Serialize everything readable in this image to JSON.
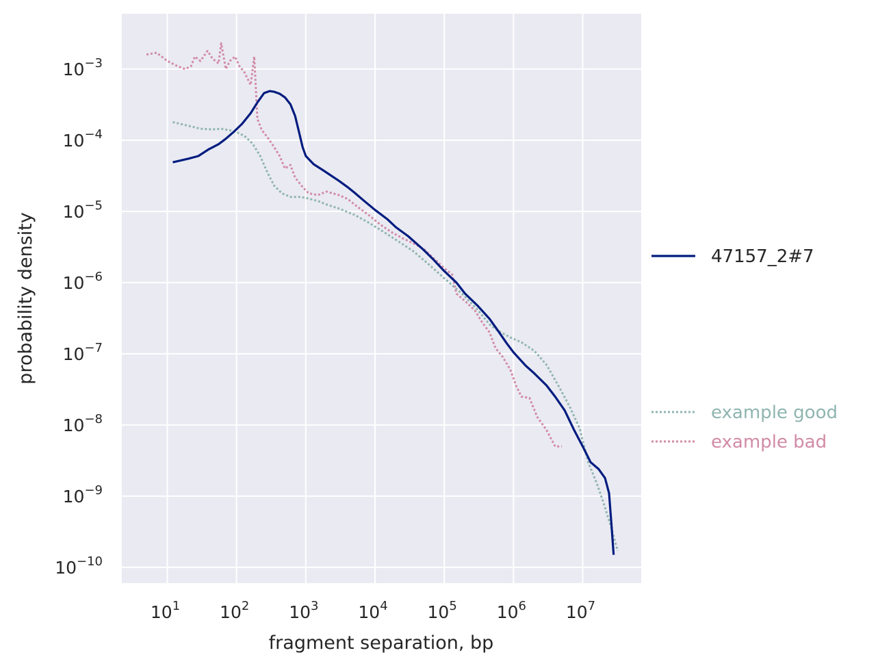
{
  "chart_data": {
    "type": "line",
    "title": "",
    "xlabel": "fragment separation, bp",
    "ylabel": "probability density",
    "x_scale": "log",
    "y_scale": "log",
    "xlim": [
      2.2,
      70000000
    ],
    "ylim": [
      6e-11,
      0.006
    ],
    "x_ticks": [
      10,
      100,
      1000,
      10000,
      100000,
      1000000,
      10000000
    ],
    "x_tick_labels": [
      {
        "base": "10",
        "exp": "1"
      },
      {
        "base": "10",
        "exp": "2"
      },
      {
        "base": "10",
        "exp": "3"
      },
      {
        "base": "10",
        "exp": "4"
      },
      {
        "base": "10",
        "exp": "5"
      },
      {
        "base": "10",
        "exp": "6"
      },
      {
        "base": "10",
        "exp": "7"
      }
    ],
    "y_ticks": [
      1e-10,
      1e-09,
      1e-08,
      1e-07,
      1e-06,
      1e-05,
      0.0001,
      0.001
    ],
    "y_tick_labels": [
      {
        "base": "10",
        "exp": "−10"
      },
      {
        "base": "10",
        "exp": "−9"
      },
      {
        "base": "10",
        "exp": "−8"
      },
      {
        "base": "10",
        "exp": "−7"
      },
      {
        "base": "10",
        "exp": "−6"
      },
      {
        "base": "10",
        "exp": "−5"
      },
      {
        "base": "10",
        "exp": "−4"
      },
      {
        "base": "10",
        "exp": "−3"
      }
    ],
    "grid": true,
    "legend_position": "right",
    "series": [
      {
        "name": "example good",
        "color": "#8fb5b0",
        "style": "dotted",
        "points": [
          [
            12,
            0.00018
          ],
          [
            20,
            0.00016
          ],
          [
            30,
            0.000145
          ],
          [
            45,
            0.000142
          ],
          [
            60,
            0.000145
          ],
          [
            80,
            0.000138
          ],
          [
            100,
            0.00013
          ],
          [
            130,
            0.000115
          ],
          [
            170,
            9e-05
          ],
          [
            220,
            6e-05
          ],
          [
            280,
            3.5e-05
          ],
          [
            350,
            2.3e-05
          ],
          [
            450,
            1.8e-05
          ],
          [
            600,
            1.6e-05
          ],
          [
            800,
            1.6e-05
          ],
          [
            1000,
            1.55e-05
          ],
          [
            1500,
            1.4e-05
          ],
          [
            2000,
            1.25e-05
          ],
          [
            3000,
            1.1e-05
          ],
          [
            5000,
            9e-06
          ],
          [
            8000,
            7e-06
          ],
          [
            12000,
            5.5e-06
          ],
          [
            20000,
            4e-06
          ],
          [
            35000,
            2.8e-06
          ],
          [
            60000,
            1.8e-06
          ],
          [
            100000,
            1.15e-06
          ],
          [
            180000,
            7e-07
          ],
          [
            300000,
            4.2e-07
          ],
          [
            450000,
            2.6e-07
          ],
          [
            600000,
            2.1e-07
          ],
          [
            900000,
            1.7e-07
          ],
          [
            1300000,
            1.45e-07
          ],
          [
            2000000,
            1.1e-07
          ],
          [
            3000000,
            7e-08
          ],
          [
            4500000,
            3.5e-08
          ],
          [
            6500000,
            1.8e-08
          ],
          [
            9000000,
            9e-09
          ],
          [
            12000000,
            3e-09
          ],
          [
            16000000,
            1.5e-09
          ],
          [
            20000000,
            8e-10
          ],
          [
            25000000,
            4e-10
          ],
          [
            32000000,
            1.7e-10
          ]
        ]
      },
      {
        "name": "example bad",
        "color": "#d18ba6",
        "style": "dotted",
        "points": [
          [
            5,
            0.0016
          ],
          [
            7,
            0.0017
          ],
          [
            10,
            0.0013
          ],
          [
            14,
            0.0011
          ],
          [
            18,
            0.001
          ],
          [
            22,
            0.0011
          ],
          [
            25,
            0.0015
          ],
          [
            30,
            0.0013
          ],
          [
            38,
            0.0018
          ],
          [
            45,
            0.0014
          ],
          [
            55,
            0.0012
          ],
          [
            60,
            0.0023
          ],
          [
            70,
            0.001
          ],
          [
            80,
            0.0013
          ],
          [
            95,
            0.0015
          ],
          [
            110,
            0.0011
          ],
          [
            130,
            0.0009
          ],
          [
            160,
            0.0006
          ],
          [
            180,
            0.0015
          ],
          [
            200,
            0.0002
          ],
          [
            230,
            0.00014
          ],
          [
            280,
            0.00011
          ],
          [
            350,
            8e-05
          ],
          [
            420,
            6e-05
          ],
          [
            500,
            4e-05
          ],
          [
            600,
            4.5e-05
          ],
          [
            700,
            3e-05
          ],
          [
            900,
            2.2e-05
          ],
          [
            1100,
            1.8e-05
          ],
          [
            1500,
            1.7e-05
          ],
          [
            2000,
            1.9e-05
          ],
          [
            3000,
            1.7e-05
          ],
          [
            4000,
            1.5e-05
          ],
          [
            6000,
            1.1e-05
          ],
          [
            8000,
            9e-06
          ],
          [
            12000,
            6.5e-06
          ],
          [
            18000,
            5e-06
          ],
          [
            25000,
            4.2e-06
          ],
          [
            35000,
            3.6e-06
          ],
          [
            50000,
            3e-06
          ],
          [
            70000,
            2.2e-06
          ],
          [
            100000,
            1.6e-06
          ],
          [
            130000,
            1.3e-06
          ],
          [
            150000,
            7e-07
          ],
          [
            200000,
            5.5e-07
          ],
          [
            280000,
            4e-07
          ],
          [
            350000,
            2.8e-07
          ],
          [
            450000,
            2e-07
          ],
          [
            550000,
            1.2e-07
          ],
          [
            700000,
            9e-08
          ],
          [
            900000,
            6e-08
          ],
          [
            1100000,
            3.5e-08
          ],
          [
            1300000,
            2.5e-08
          ],
          [
            1700000,
            2.4e-08
          ],
          [
            2200000,
            1.3e-08
          ],
          [
            3000000,
            8.5e-09
          ],
          [
            4000000,
            5e-09
          ],
          [
            5000000,
            5e-09
          ]
        ]
      },
      {
        "name": "47157_2#7",
        "color": "#001c7f",
        "style": "solid",
        "points": [
          [
            12,
            4.9e-05
          ],
          [
            20,
            5.5e-05
          ],
          [
            28,
            6e-05
          ],
          [
            40,
            7.5e-05
          ],
          [
            55,
            8.8e-05
          ],
          [
            70,
            0.000105
          ],
          [
            90,
            0.00013
          ],
          [
            120,
            0.00017
          ],
          [
            160,
            0.00024
          ],
          [
            200,
            0.00034
          ],
          [
            250,
            0.00046
          ],
          [
            300,
            0.00049
          ],
          [
            350,
            0.00048
          ],
          [
            420,
            0.00045
          ],
          [
            500,
            0.0004
          ],
          [
            600,
            0.00032
          ],
          [
            700,
            0.00022
          ],
          [
            800,
            0.00013
          ],
          [
            900,
            8e-05
          ],
          [
            1000,
            6e-05
          ],
          [
            1300,
            4.6e-05
          ],
          [
            1700,
            3.9e-05
          ],
          [
            2200,
            3.3e-05
          ],
          [
            3000,
            2.7e-05
          ],
          [
            4000,
            2.2e-05
          ],
          [
            5000,
            1.85e-05
          ],
          [
            7000,
            1.4e-05
          ],
          [
            10000,
            1.05e-05
          ],
          [
            15000,
            7.8e-06
          ],
          [
            20000,
            6e-06
          ],
          [
            30000,
            4.5e-06
          ],
          [
            50000,
            2.9e-06
          ],
          [
            70000,
            2.1e-06
          ],
          [
            100000,
            1.45e-06
          ],
          [
            150000,
            1e-06
          ],
          [
            200000,
            7e-07
          ],
          [
            300000,
            4.8e-07
          ],
          [
            450000,
            3.1e-07
          ],
          [
            600000,
            2.1e-07
          ],
          [
            800000,
            1.4e-07
          ],
          [
            1000000,
            1.05e-07
          ],
          [
            1500000,
            6.8e-08
          ],
          [
            2000000,
            5.3e-08
          ],
          [
            3000000,
            3.6e-08
          ],
          [
            4000000,
            2.5e-08
          ],
          [
            5500000,
            1.6e-08
          ],
          [
            7500000,
            8.5e-09
          ],
          [
            10000000,
            5e-09
          ],
          [
            13000000,
            3e-09
          ],
          [
            17000000,
            2.4e-09
          ],
          [
            21000000,
            1.8e-09
          ],
          [
            24000000,
            1.1e-09
          ],
          [
            26000000,
            4e-10
          ],
          [
            28000000,
            1.5e-10
          ]
        ]
      }
    ]
  }
}
